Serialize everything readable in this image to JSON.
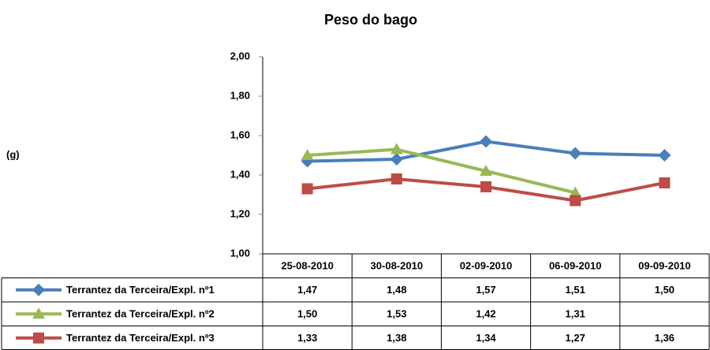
{
  "chart_data": {
    "type": "line",
    "title": "Peso  do bago",
    "y_label": "(g)",
    "categories": [
      "25-08-2010",
      "30-08-2010",
      "02-09-2010",
      "06-09-2010",
      "09-09-2010"
    ],
    "ylim": [
      1.0,
      2.0
    ],
    "yticks": [
      {
        "value": 1.0,
        "label": "1,00"
      },
      {
        "value": 1.2,
        "label": "1,20"
      },
      {
        "value": 1.4,
        "label": "1,40"
      },
      {
        "value": 1.6,
        "label": "1,60"
      },
      {
        "value": 1.8,
        "label": "1,80"
      },
      {
        "value": 2.0,
        "label": "2,00"
      }
    ],
    "series": [
      {
        "name": "Terrantez da Terceira/Expl. nº1",
        "color": "#4a7ebb",
        "marker": "diamond",
        "values": [
          1.47,
          1.48,
          1.57,
          1.51,
          1.5
        ],
        "value_labels": [
          "1,47",
          "1,48",
          "1,57",
          "1,51",
          "1,50"
        ]
      },
      {
        "name": "Terrantez da Terceira/Expl. nº2",
        "color": "#98b954",
        "marker": "triangle",
        "values": [
          1.5,
          1.53,
          1.42,
          1.31,
          null
        ],
        "value_labels": [
          "1,50",
          "1,53",
          "1,42",
          "1,31",
          null
        ]
      },
      {
        "name": "Terrantez da Terceira/Expl. nº3",
        "color": "#be4b48",
        "marker": "square",
        "values": [
          1.33,
          1.38,
          1.34,
          1.27,
          1.36
        ],
        "value_labels": [
          "1,33",
          "1,38",
          "1,34",
          "1,27",
          "1,36"
        ]
      }
    ]
  }
}
